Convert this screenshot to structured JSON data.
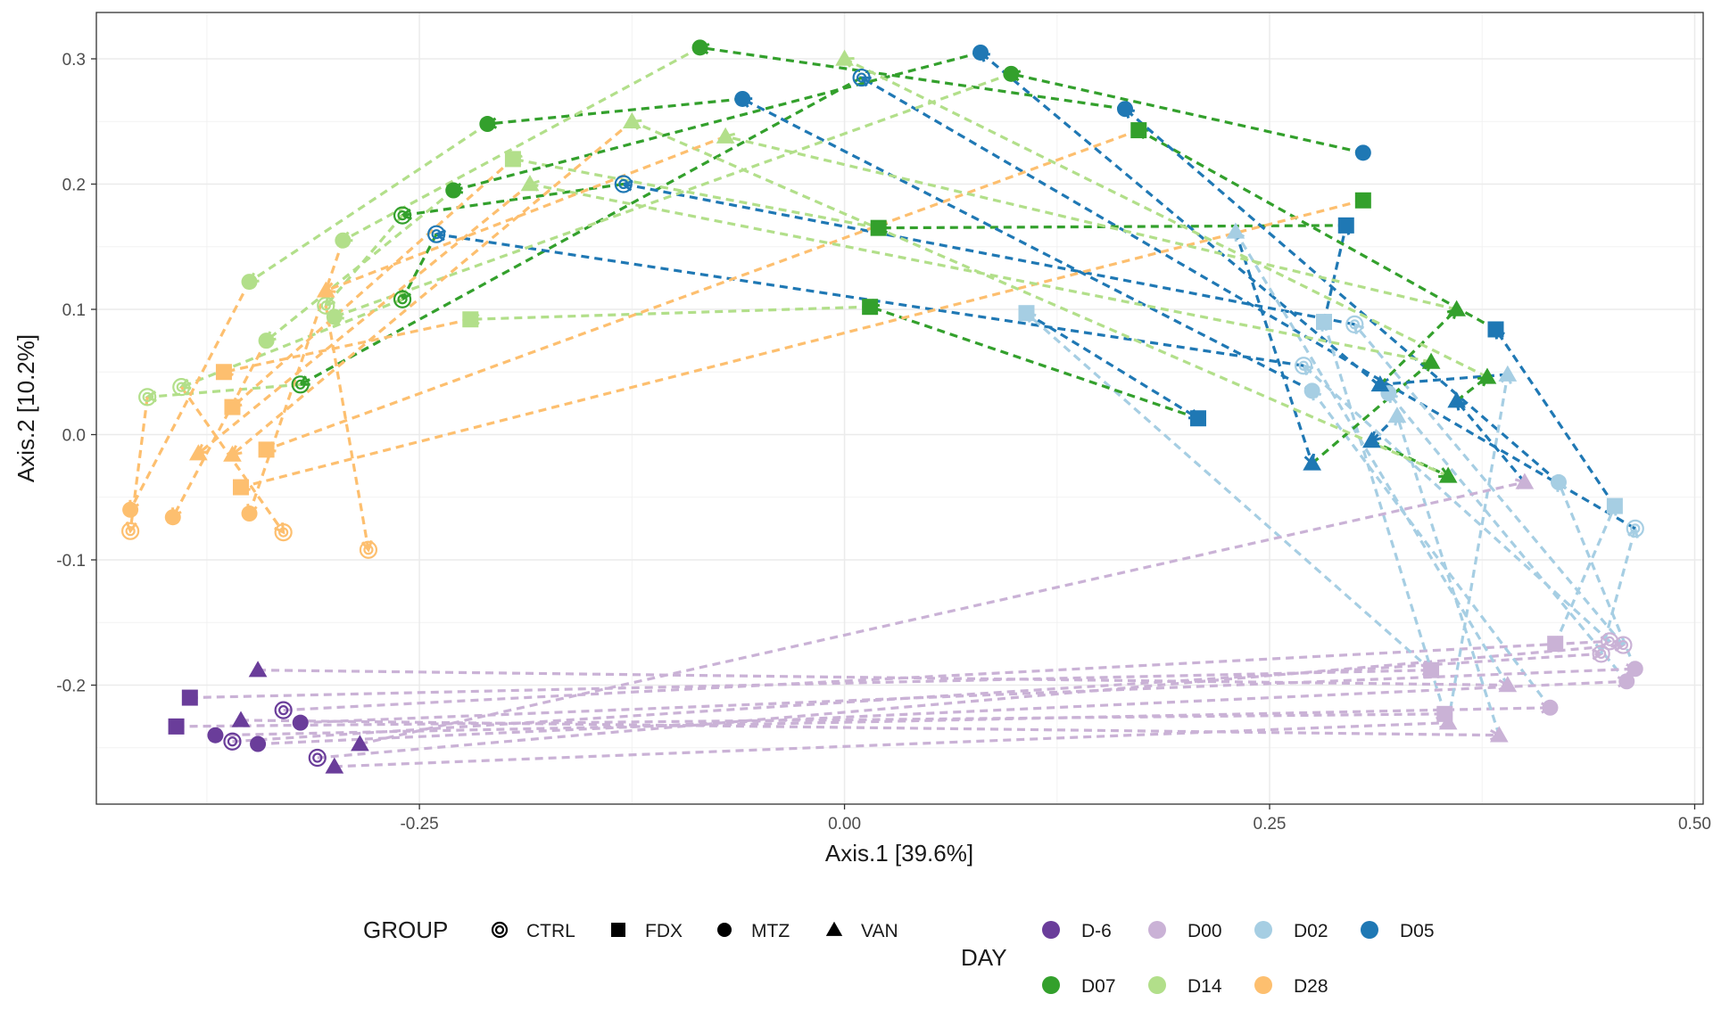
{
  "chart_data": {
    "type": "scatter",
    "xlabel": "Axis.1   [39.6%]",
    "ylabel": "Axis.2   [10.2%]",
    "xlim": [
      -0.44,
      0.505
    ],
    "ylim": [
      -0.295,
      0.337
    ],
    "x_ticks": [
      -0.25,
      0.0,
      0.25,
      0.5
    ],
    "x_tick_labels": [
      "-0.25",
      "0.00",
      "0.25",
      "0.50"
    ],
    "y_ticks": [
      -0.2,
      -0.1,
      0.0,
      0.1,
      0.2,
      0.3
    ],
    "y_tick_labels": [
      "-0.2",
      "-0.1",
      "0.0",
      "0.1",
      "0.2",
      "0.3"
    ],
    "grid": true,
    "theme": "bw",
    "legend_position": "bottom",
    "shape_legend": {
      "title": "GROUP",
      "entries": [
        {
          "label": "CTRL",
          "shape": "double-circle"
        },
        {
          "label": "FDX",
          "shape": "square"
        },
        {
          "label": "MTZ",
          "shape": "circle"
        },
        {
          "label": "VAN",
          "shape": "triangle"
        }
      ]
    },
    "color_legend": {
      "title": "DAY",
      "entries": [
        {
          "label": "D-6",
          "color": "#6a3d9a"
        },
        {
          "label": "D00",
          "color": "#cab2d6"
        },
        {
          "label": "D02",
          "color": "#a6cee3"
        },
        {
          "label": "D05",
          "color": "#1f78b4"
        },
        {
          "label": "D07",
          "color": "#33a02c"
        },
        {
          "label": "D14",
          "color": "#b2df8a"
        },
        {
          "label": "D28",
          "color": "#fdbf6f"
        }
      ]
    },
    "series": [
      {
        "group": "CTRL",
        "points": [
          {
            "day": "D-6",
            "x": -0.36,
            "y": -0.245
          },
          {
            "day": "D-6",
            "x": -0.33,
            "y": -0.22
          },
          {
            "day": "D-6",
            "x": -0.31,
            "y": -0.258
          },
          {
            "day": "D00",
            "x": 0.445,
            "y": -0.175
          },
          {
            "day": "D00",
            "x": 0.45,
            "y": -0.165
          },
          {
            "day": "D00",
            "x": 0.458,
            "y": -0.168
          },
          {
            "day": "D02",
            "x": 0.465,
            "y": -0.075
          },
          {
            "day": "D02",
            "x": 0.27,
            "y": 0.055
          },
          {
            "day": "D02",
            "x": 0.3,
            "y": 0.088
          },
          {
            "day": "D05",
            "x": -0.24,
            "y": 0.16
          },
          {
            "day": "D05",
            "x": -0.13,
            "y": 0.2
          },
          {
            "day": "D05",
            "x": 0.01,
            "y": 0.285
          },
          {
            "day": "D07",
            "x": -0.32,
            "y": 0.04
          },
          {
            "day": "D07",
            "x": -0.26,
            "y": 0.108
          },
          {
            "day": "D07",
            "x": -0.26,
            "y": 0.175
          },
          {
            "day": "D14",
            "x": -0.41,
            "y": 0.03
          },
          {
            "day": "D14",
            "x": -0.39,
            "y": 0.038
          },
          {
            "day": "D14",
            "x": -0.305,
            "y": 0.103
          },
          {
            "day": "D28",
            "x": -0.42,
            "y": -0.077
          },
          {
            "day": "D28",
            "x": -0.33,
            "y": -0.078
          },
          {
            "day": "D28",
            "x": -0.28,
            "y": -0.092
          }
        ]
      },
      {
        "group": "FDX",
        "points": [
          {
            "day": "D-6",
            "x": -0.385,
            "y": -0.21
          },
          {
            "day": "D-6",
            "x": -0.393,
            "y": -0.233
          },
          {
            "day": "D00",
            "x": 0.345,
            "y": -0.188
          },
          {
            "day": "D00",
            "x": 0.353,
            "y": -0.223
          },
          {
            "day": "D00",
            "x": 0.418,
            "y": -0.167
          },
          {
            "day": "D02",
            "x": 0.107,
            "y": 0.097
          },
          {
            "day": "D02",
            "x": 0.282,
            "y": 0.09
          },
          {
            "day": "D02",
            "x": 0.453,
            "y": -0.057
          },
          {
            "day": "D05",
            "x": 0.208,
            "y": 0.013
          },
          {
            "day": "D05",
            "x": 0.295,
            "y": 0.167
          },
          {
            "day": "D05",
            "x": 0.383,
            "y": 0.084
          },
          {
            "day": "D07",
            "x": 0.015,
            "y": 0.102
          },
          {
            "day": "D07",
            "x": 0.02,
            "y": 0.165
          },
          {
            "day": "D07",
            "x": 0.173,
            "y": 0.243
          },
          {
            "day": "D07",
            "x": 0.305,
            "y": 0.187
          },
          {
            "day": "D14",
            "x": -0.22,
            "y": 0.092
          },
          {
            "day": "D14",
            "x": -0.195,
            "y": 0.22
          },
          {
            "day": "D28",
            "x": -0.365,
            "y": 0.05
          },
          {
            "day": "D28",
            "x": -0.36,
            "y": 0.022
          },
          {
            "day": "D28",
            "x": -0.34,
            "y": -0.012
          },
          {
            "day": "D28",
            "x": -0.355,
            "y": -0.042
          }
        ]
      },
      {
        "group": "MTZ",
        "points": [
          {
            "day": "D-6",
            "x": -0.37,
            "y": -0.24
          },
          {
            "day": "D-6",
            "x": -0.345,
            "y": -0.247
          },
          {
            "day": "D-6",
            "x": -0.32,
            "y": -0.23
          },
          {
            "day": "D00",
            "x": 0.415,
            "y": -0.218
          },
          {
            "day": "D00",
            "x": 0.46,
            "y": -0.197
          },
          {
            "day": "D00",
            "x": 0.465,
            "y": -0.187
          },
          {
            "day": "D02",
            "x": 0.275,
            "y": 0.035
          },
          {
            "day": "D02",
            "x": 0.32,
            "y": 0.033
          },
          {
            "day": "D02",
            "x": 0.42,
            "y": -0.038
          },
          {
            "day": "D05",
            "x": -0.06,
            "y": 0.268
          },
          {
            "day": "D05",
            "x": 0.08,
            "y": 0.305
          },
          {
            "day": "D05",
            "x": 0.165,
            "y": 0.26
          },
          {
            "day": "D05",
            "x": 0.305,
            "y": 0.225
          },
          {
            "day": "D07",
            "x": -0.21,
            "y": 0.248
          },
          {
            "day": "D07",
            "x": -0.23,
            "y": 0.195
          },
          {
            "day": "D07",
            "x": -0.085,
            "y": 0.309
          },
          {
            "day": "D07",
            "x": 0.098,
            "y": 0.288
          },
          {
            "day": "D14",
            "x": -0.35,
            "y": 0.122
          },
          {
            "day": "D14",
            "x": -0.34,
            "y": 0.075
          },
          {
            "day": "D14",
            "x": -0.295,
            "y": 0.155
          },
          {
            "day": "D14",
            "x": -0.3,
            "y": 0.094
          },
          {
            "day": "D28",
            "x": -0.42,
            "y": -0.06
          },
          {
            "day": "D28",
            "x": -0.395,
            "y": -0.066
          },
          {
            "day": "D28",
            "x": -0.35,
            "y": -0.063
          }
        ]
      },
      {
        "group": "VAN",
        "points": [
          {
            "day": "D-6",
            "x": -0.345,
            "y": -0.188
          },
          {
            "day": "D-6",
            "x": -0.355,
            "y": -0.228
          },
          {
            "day": "D-6",
            "x": -0.3,
            "y": -0.265
          },
          {
            "day": "D-6",
            "x": -0.285,
            "y": -0.247
          },
          {
            "day": "D00",
            "x": 0.39,
            "y": -0.2
          },
          {
            "day": "D00",
            "x": 0.385,
            "y": -0.24
          },
          {
            "day": "D00",
            "x": 0.355,
            "y": -0.23
          },
          {
            "day": "D00",
            "x": 0.4,
            "y": -0.038
          },
          {
            "day": "D02",
            "x": 0.23,
            "y": 0.162
          },
          {
            "day": "D02",
            "x": 0.325,
            "y": 0.015
          },
          {
            "day": "D02",
            "x": 0.39,
            "y": 0.048
          },
          {
            "day": "D05",
            "x": 0.275,
            "y": -0.023
          },
          {
            "day": "D05",
            "x": 0.31,
            "y": -0.005
          },
          {
            "day": "D05",
            "x": 0.315,
            "y": 0.04
          },
          {
            "day": "D05",
            "x": 0.36,
            "y": 0.027
          },
          {
            "day": "D07",
            "x": 0.345,
            "y": 0.058
          },
          {
            "day": "D07",
            "x": 0.355,
            "y": -0.033
          },
          {
            "day": "D07",
            "x": 0.36,
            "y": 0.1
          },
          {
            "day": "D07",
            "x": 0.378,
            "y": 0.046
          },
          {
            "day": "D14",
            "x": -0.185,
            "y": 0.2
          },
          {
            "day": "D14",
            "x": -0.125,
            "y": 0.25
          },
          {
            "day": "D14",
            "x": -0.07,
            "y": 0.238
          },
          {
            "day": "D14",
            "x": 0.0,
            "y": 0.3
          },
          {
            "day": "D28",
            "x": -0.38,
            "y": -0.015
          },
          {
            "day": "D28",
            "x": -0.36,
            "y": -0.016
          },
          {
            "day": "D28",
            "x": -0.305,
            "y": 0.115
          }
        ]
      }
    ],
    "trajectories": [
      {
        "group": "CTRL",
        "days": [
          "D-6",
          "D00",
          "D02",
          "D05",
          "D07",
          "D14",
          "D28"
        ],
        "x": [
          -0.36,
          0.445,
          0.465,
          0.01,
          -0.32,
          -0.41,
          -0.42
        ],
        "y": [
          -0.245,
          -0.175,
          -0.075,
          0.285,
          0.04,
          0.03,
          -0.077
        ]
      },
      {
        "group": "CTRL",
        "days": [
          "D-6",
          "D00",
          "D02",
          "D05",
          "D07",
          "D14",
          "D28"
        ],
        "x": [
          -0.33,
          0.45,
          0.27,
          -0.24,
          -0.26,
          -0.39,
          -0.33
        ],
        "y": [
          -0.22,
          -0.165,
          0.055,
          0.16,
          0.108,
          0.038,
          -0.078
        ]
      },
      {
        "group": "CTRL",
        "days": [
          "D-6",
          "D00",
          "D02",
          "D05",
          "D07",
          "D14",
          "D28"
        ],
        "x": [
          -0.31,
          0.458,
          0.3,
          -0.13,
          -0.26,
          -0.305,
          -0.28
        ],
        "y": [
          -0.258,
          -0.168,
          0.088,
          0.2,
          0.175,
          0.103,
          -0.092
        ]
      },
      {
        "group": "FDX",
        "days": [
          "D-6",
          "D00",
          "D02",
          "D05",
          "D07",
          "D14",
          "D28"
        ],
        "x": [
          -0.385,
          0.345,
          0.107,
          0.208,
          0.015,
          -0.22,
          -0.365
        ],
        "y": [
          -0.21,
          -0.188,
          0.097,
          0.013,
          0.102,
          0.092,
          0.05
        ]
      },
      {
        "group": "FDX",
        "days": [
          "D-6",
          "D00",
          "D02",
          "D05",
          "D07",
          "D14",
          "D28"
        ],
        "x": [
          -0.393,
          0.353,
          0.282,
          0.295,
          0.02,
          -0.195,
          -0.36
        ],
        "y": [
          -0.233,
          -0.223,
          0.09,
          0.167,
          0.165,
          0.22,
          0.022
        ]
      },
      {
        "group": "FDX",
        "days": [
          "D00",
          "D02",
          "D05",
          "D07",
          "D28"
        ],
        "x": [
          0.418,
          0.453,
          0.383,
          0.173,
          -0.34
        ],
        "y": [
          -0.167,
          -0.057,
          0.084,
          0.243,
          -0.012
        ]
      },
      {
        "group": "FDX",
        "days": [
          "D07",
          "D28"
        ],
        "x": [
          0.305,
          -0.355
        ],
        "y": [
          0.187,
          -0.042
        ]
      },
      {
        "group": "MTZ",
        "days": [
          "D-6",
          "D00",
          "D02",
          "D05",
          "D07",
          "D14",
          "D28"
        ],
        "x": [
          -0.37,
          0.415,
          0.275,
          -0.06,
          -0.21,
          -0.35,
          -0.42
        ],
        "y": [
          -0.24,
          -0.218,
          0.035,
          0.268,
          0.248,
          0.122,
          -0.06
        ]
      },
      {
        "group": "MTZ",
        "days": [
          "D-6",
          "D00",
          "D02",
          "D05",
          "D07",
          "D14",
          "D28"
        ],
        "x": [
          -0.345,
          0.46,
          0.32,
          0.08,
          -0.23,
          -0.34,
          -0.395
        ],
        "y": [
          -0.247,
          -0.197,
          0.033,
          0.305,
          0.195,
          0.075,
          -0.066
        ]
      },
      {
        "group": "MTZ",
        "days": [
          "D-6",
          "D00",
          "D02",
          "D05",
          "D07",
          "D14",
          "D28"
        ],
        "x": [
          -0.32,
          0.465,
          0.42,
          0.165,
          -0.085,
          -0.295,
          -0.35
        ],
        "y": [
          -0.23,
          -0.187,
          -0.038,
          0.26,
          0.309,
          0.155,
          -0.063
        ]
      },
      {
        "group": "MTZ",
        "days": [
          "D05",
          "D07",
          "D14"
        ],
        "x": [
          0.305,
          0.098,
          -0.3
        ],
        "y": [
          0.225,
          0.288,
          0.094
        ]
      },
      {
        "group": "VAN",
        "days": [
          "D-6",
          "D00",
          "D02",
          "D05",
          "D07",
          "D14",
          "D28"
        ],
        "x": [
          -0.345,
          0.39,
          0.23,
          0.275,
          0.345,
          -0.185,
          -0.38
        ],
        "y": [
          -0.188,
          -0.2,
          0.162,
          -0.023,
          0.058,
          0.2,
          -0.015
        ]
      },
      {
        "group": "VAN",
        "days": [
          "D-6",
          "D00",
          "D02",
          "D05",
          "D07",
          "D14",
          "D28"
        ],
        "x": [
          -0.355,
          0.385,
          0.325,
          0.31,
          0.355,
          -0.125,
          -0.36
        ],
        "y": [
          -0.228,
          -0.24,
          0.015,
          -0.005,
          -0.033,
          0.25,
          -0.016
        ]
      },
      {
        "group": "VAN",
        "days": [
          "D-6",
          "D00",
          "D02",
          "D05",
          "D07",
          "D14",
          "D28"
        ],
        "x": [
          -0.3,
          0.355,
          0.39,
          0.315,
          0.36,
          -0.07,
          -0.305
        ],
        "y": [
          -0.265,
          -0.23,
          0.048,
          0.04,
          0.1,
          0.238,
          0.115
        ]
      },
      {
        "group": "VAN",
        "days": [
          "D-6",
          "D00",
          "D05",
          "D07",
          "D14"
        ],
        "x": [
          -0.285,
          0.4,
          0.36,
          0.378,
          0.0
        ],
        "y": [
          -0.247,
          -0.038,
          0.027,
          0.046,
          0.3
        ]
      }
    ]
  }
}
